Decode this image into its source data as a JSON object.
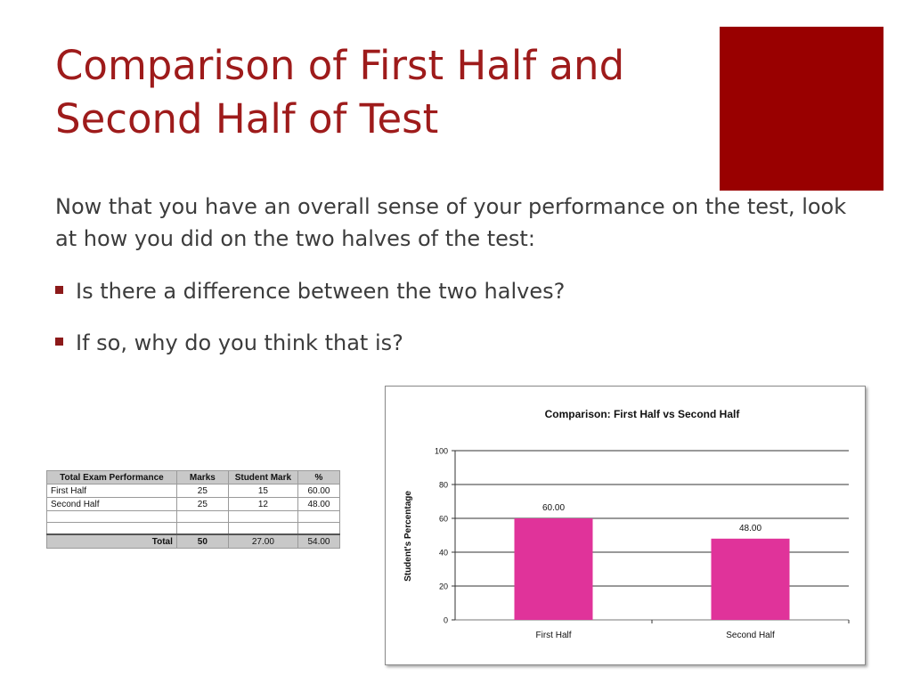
{
  "slide": {
    "title_line1": "Comparison of First Half and",
    "title_line2": "Second Half of Test",
    "intro": "Now that you have an overall sense of your performance on the test, look at how you did on the two halves of the test:",
    "bullets": [
      "Is there a difference between the two halves?",
      "If so, why do you think that is?"
    ],
    "accent_color": "#990000",
    "title_color": "#9e1b1b"
  },
  "table": {
    "headers": [
      "Total Exam Performance",
      "Marks",
      "Student Mark",
      "%"
    ],
    "rows": [
      [
        "First Half",
        "25",
        "15",
        "60.00"
      ],
      [
        "Second Half",
        "25",
        "12",
        "48.00"
      ]
    ],
    "total": [
      "Total",
      "50",
      "27.00",
      "54.00"
    ]
  },
  "chart_data": {
    "type": "bar",
    "title": "Comparison: First Half vs Second Half",
    "ylabel": "Student's Percentage",
    "xlabel": "",
    "categories": [
      "First Half",
      "Second Half"
    ],
    "values": [
      60.0,
      48.0
    ],
    "value_labels": [
      "60.00",
      "48.00"
    ],
    "ylim": [
      0,
      100
    ],
    "yticks": [
      "0",
      "20",
      "40",
      "60",
      "80",
      "100"
    ],
    "ytick_values": [
      0,
      20,
      40,
      60,
      80,
      100
    ],
    "grid": true,
    "bar_color": "#e0339a"
  }
}
